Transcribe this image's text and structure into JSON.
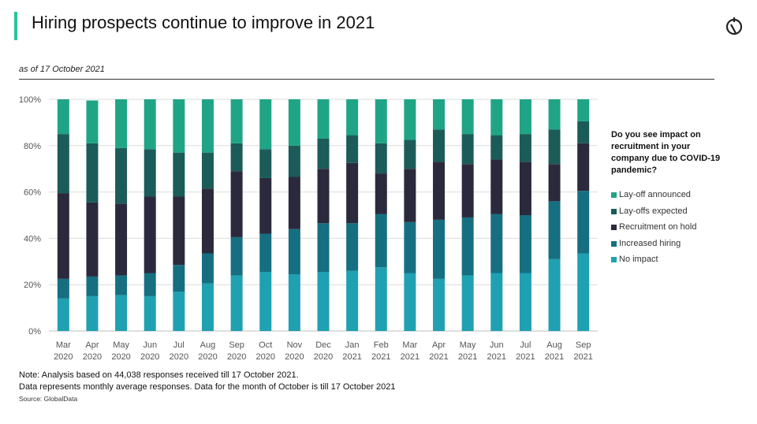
{
  "header": {
    "title": "Hiring prospects continue to improve in 2021",
    "as_of": "as of 17 October 2021"
  },
  "legend": {
    "title": "Do you see impact on recruitment in your company due to COVID-19 pandemic?",
    "items": [
      {
        "label": "Lay-off announced",
        "color": "#1fa585"
      },
      {
        "label": "Lay-offs expected",
        "color": "#1b5c59"
      },
      {
        "label": "Recruitment on hold",
        "color": "#2b2a3c"
      },
      {
        "label": "Increased hiring",
        "color": "#166f81"
      },
      {
        "label": "No impact",
        "color": "#1fa1b2"
      }
    ]
  },
  "footer": {
    "note1": "Note: Analysis based on 44,038 responses received till 17 October 2021.",
    "note2": "Data represents monthly average responses. Data for the month of October is till 17 October 2021",
    "source": "Source: GlobalData"
  },
  "icons": {
    "logo": "globaldata-logo-icon"
  },
  "chart_data": {
    "type": "bar",
    "stacked": true,
    "categories": [
      [
        "Mar",
        "2020"
      ],
      [
        "Apr",
        "2020"
      ],
      [
        "May",
        "2020"
      ],
      [
        "Jun",
        "2020"
      ],
      [
        "Jul",
        "2020"
      ],
      [
        "Aug",
        "2020"
      ],
      [
        "Sep",
        "2020"
      ],
      [
        "Oct",
        "2020"
      ],
      [
        "Nov",
        "2020"
      ],
      [
        "Dec",
        "2020"
      ],
      [
        "Jan",
        "2021"
      ],
      [
        "Feb",
        "2021"
      ],
      [
        "Mar",
        "2021"
      ],
      [
        "Apr",
        "2021"
      ],
      [
        "May",
        "2021"
      ],
      [
        "Jun",
        "2021"
      ],
      [
        "Jul",
        "2021"
      ],
      [
        "Aug",
        "2021"
      ],
      [
        "Sep",
        "2021"
      ]
    ],
    "y_ticks": [
      "0%",
      "20%",
      "40%",
      "60%",
      "80%",
      "100%"
    ],
    "ylim": [
      0,
      100
    ],
    "grid": true,
    "series": [
      {
        "name": "No impact",
        "color": "#1fa1b2",
        "values": [
          14,
          15,
          15.5,
          15,
          17,
          20.5,
          24,
          25.5,
          24.5,
          25.5,
          26,
          27.5,
          25,
          22.5,
          24,
          25,
          25,
          31,
          33.5
        ]
      },
      {
        "name": "Increased hiring",
        "color": "#166f81",
        "values": [
          8.5,
          8.5,
          8.5,
          10,
          11.5,
          13,
          16.5,
          16.5,
          19.5,
          21,
          20.5,
          23,
          22,
          25.5,
          25,
          25.5,
          25,
          25,
          27
        ]
      },
      {
        "name": "Recruitment on hold",
        "color": "#2b2a3c",
        "values": [
          37,
          32,
          31,
          33,
          29.5,
          28,
          28.5,
          24,
          22.5,
          23.5,
          26,
          17.5,
          23,
          25,
          23,
          23.5,
          23,
          16,
          20.5
        ]
      },
      {
        "name": "Lay-offs expected",
        "color": "#1b5c59",
        "values": [
          25.5,
          25.5,
          24,
          20.5,
          19,
          15.5,
          12,
          12.5,
          13.5,
          13,
          12,
          13,
          12.5,
          14,
          13,
          10.5,
          12,
          15,
          9.5
        ]
      },
      {
        "name": "Lay-off announced",
        "color": "#1fa585",
        "values": [
          15,
          18.5,
          21,
          21.5,
          23,
          23,
          19,
          21.5,
          20,
          17,
          15.5,
          19,
          17.5,
          13,
          15,
          15.5,
          15,
          13,
          9.5
        ]
      }
    ]
  }
}
